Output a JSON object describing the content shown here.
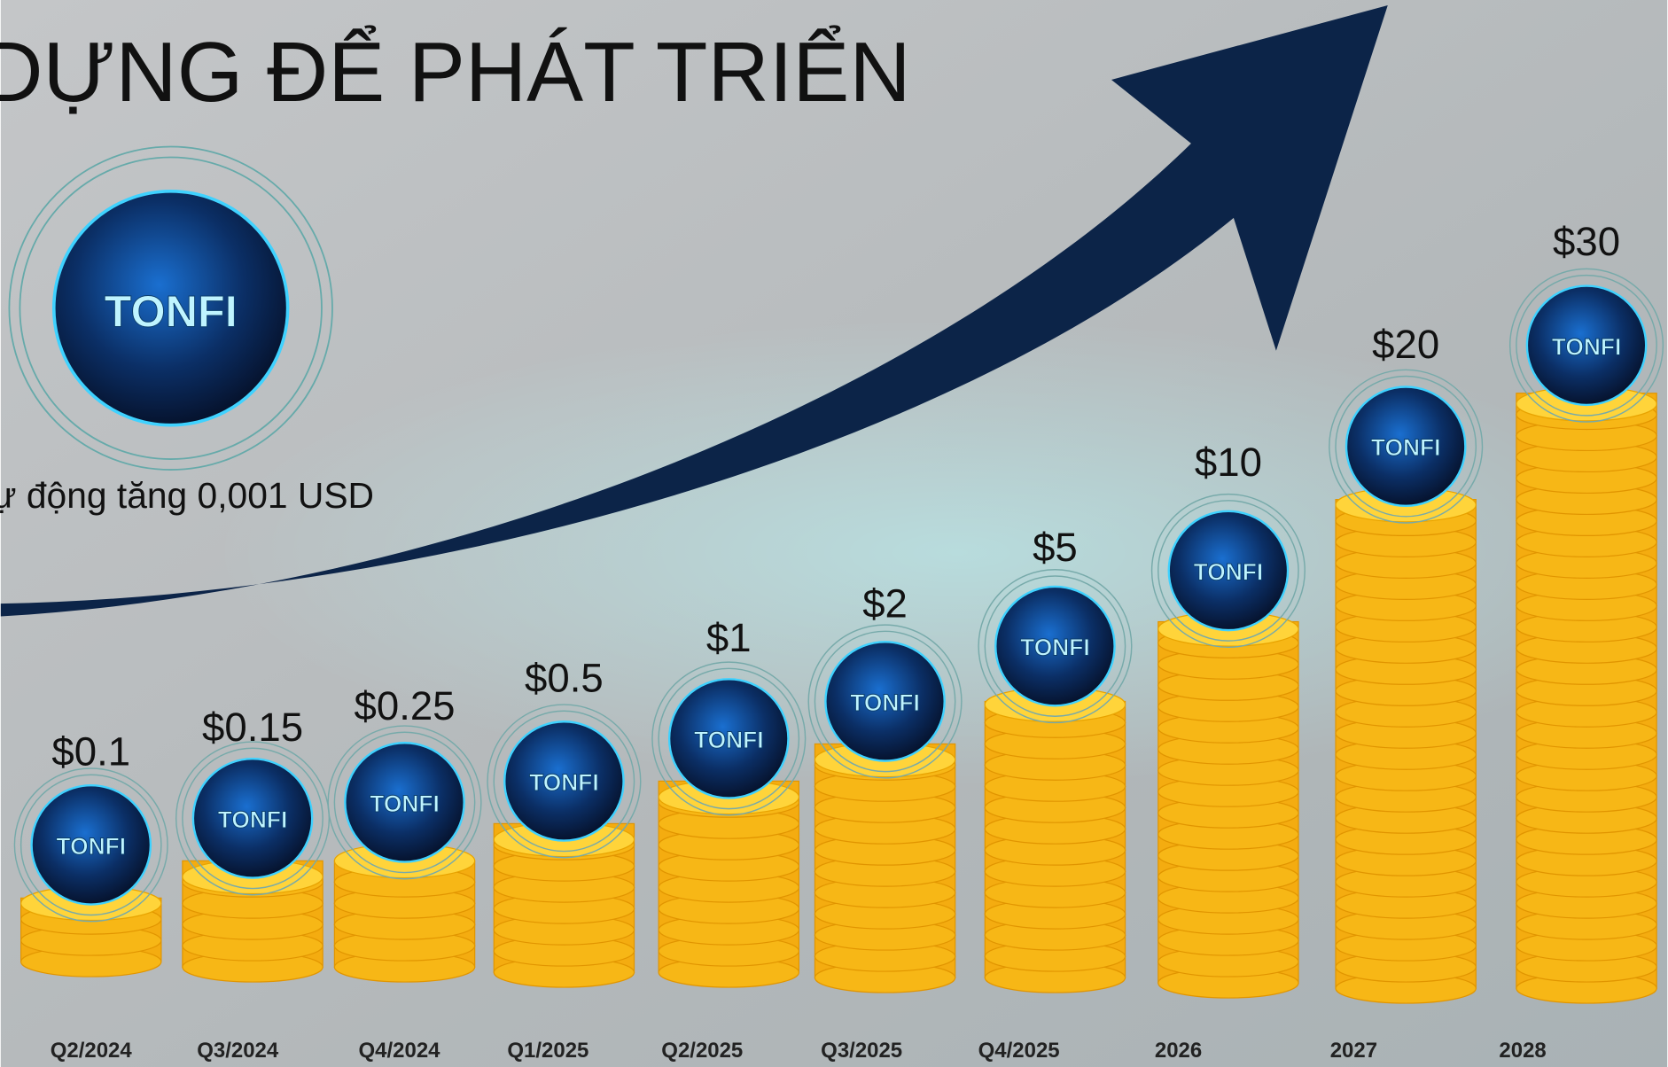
{
  "header": {
    "title": "DỰNG ĐỂ PHÁT TRIỂN",
    "note": "ự động tăng 0,001 USD",
    "logo": "TONFI"
  },
  "steps": [
    {
      "price": "$0.1",
      "period": "Q2/2024"
    },
    {
      "price": "$0.15",
      "period": "Q3/2024"
    },
    {
      "price": "$0.25",
      "period": "Q4/2024"
    },
    {
      "price": "$0.5",
      "period": "Q1/2025"
    },
    {
      "price": "$1",
      "period": "Q2/2025"
    },
    {
      "price": "$2",
      "period": "Q3/2025"
    },
    {
      "price": "$5",
      "period": "Q4/2025"
    },
    {
      "price": "$10",
      "period": "2026"
    },
    {
      "price": "$20",
      "period": "2027"
    },
    {
      "price": "$30",
      "period": "2028"
    }
  ]
}
